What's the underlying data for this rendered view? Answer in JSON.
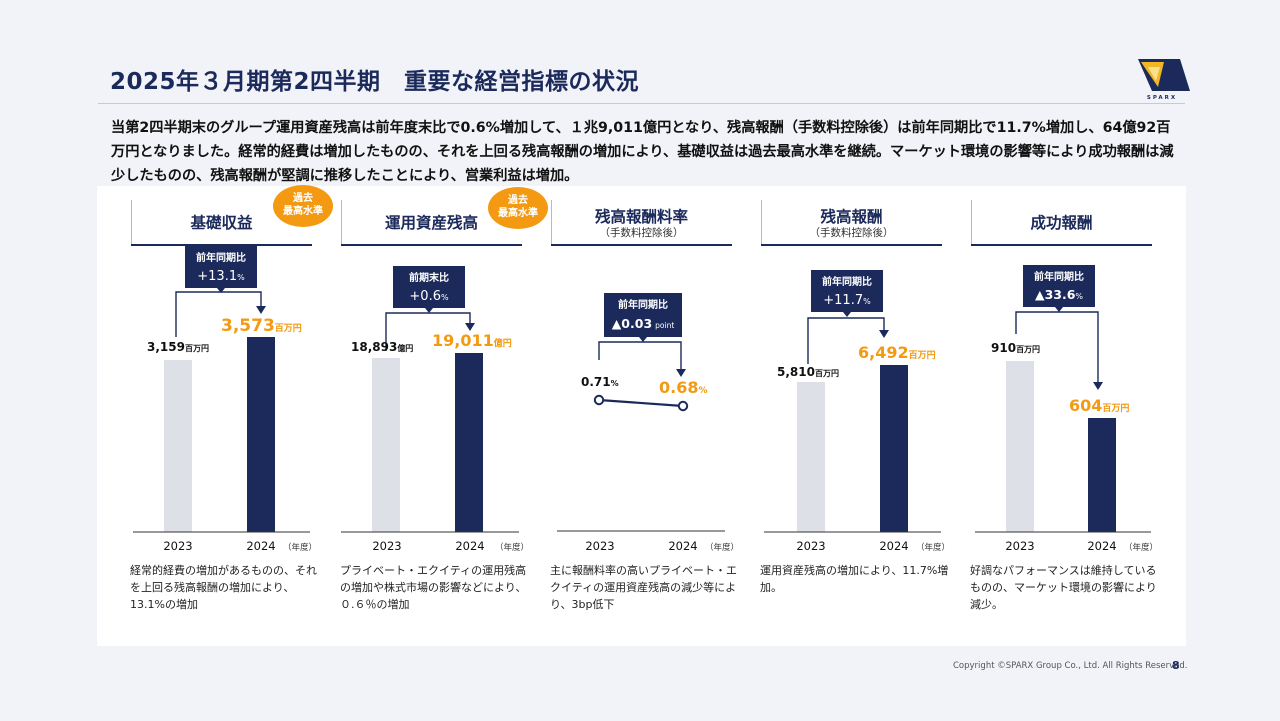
{
  "title": "2025年３月期第2四半期　重要な経営指標の状況",
  "summary": "当第2四半期末のグループ運用資産残高は前年度末比で0.6%増加して、１兆9,011億円となり、残高報酬（手数料控除後）は前年同期比で11.7%増加し、64億92百万円となりました。経常的経費は増加したものの、それを上回る残高報酬の増加により、基礎収益は過去最高水準を継続。マーケット環境の影響等により成功報酬は減少したものの、残高報酬が堅調に推移したことにより、営業利益は増加。",
  "logo": {
    "text": "SPARX"
  },
  "colors": {
    "prev_bar": "#dde0e6",
    "curr_bar": "#1b2a5b",
    "accent": "#f39a12",
    "navy": "#1b2a5b"
  },
  "panels": [
    {
      "title": "基礎収益",
      "subtitle": "",
      "badge": [
        "過去",
        "最高水準"
      ],
      "change_label": "前年同期比",
      "change_value": "+13.1",
      "change_unit": "%",
      "prev_label": "3,159",
      "prev_unit": "百万円",
      "curr_label": "3,573",
      "curr_unit": "百万円",
      "note": "経常的経費の増加があるものの、それを上回る残高報酬の増加により、13.1%の増加"
    },
    {
      "title": "運用資産残高",
      "subtitle": "",
      "badge": [
        "過去",
        "最高水準"
      ],
      "change_label": "前期末比",
      "change_value": "+0.6",
      "change_unit": "%",
      "prev_label": "18,893",
      "prev_unit": "億円",
      "curr_label": "19,011",
      "curr_unit": "億円",
      "note": "プライベート・エクイティの運用残高の増加や株式市場の影響などにより、０.６％の増加"
    },
    {
      "title": "残高報酬料率",
      "subtitle": "（手数料控除後）",
      "badge": null,
      "change_label": "前年同期比",
      "change_value": "▲0.03",
      "change_unit": "point",
      "prev_label": "0.71",
      "prev_unit": "%",
      "curr_label": "0.68",
      "curr_unit": "%",
      "note": "主に報酬料率の高いプライベート・エクイティの運用資産残高の減少等により、3bp低下"
    },
    {
      "title": "残高報酬",
      "subtitle": "（手数料控除後）",
      "badge": null,
      "change_label": "前年同期比",
      "change_value": "+11.7",
      "change_unit": "%",
      "prev_label": "5,810",
      "prev_unit": "百万円",
      "curr_label": "6,492",
      "curr_unit": "百万円",
      "note": "運用資産残高の増加により、11.7%増加。"
    },
    {
      "title": "成功報酬",
      "subtitle": "",
      "badge": null,
      "change_label": "前年同期比",
      "change_value": "▲33.6",
      "change_unit": "%",
      "prev_label": "910",
      "prev_unit": "百万円",
      "curr_label": "604",
      "curr_unit": "百万円",
      "note": "好調なパフォーマンスは維持しているものの、マーケット環境の影響により減少。"
    }
  ],
  "x_labels": [
    "2023",
    "2024"
  ],
  "fiscal_year_label": "（年度）",
  "chart_data": [
    {
      "type": "bar",
      "title": "基礎収益",
      "categories": [
        "2023",
        "2024"
      ],
      "values": [
        3159,
        3573
      ],
      "unit": "百万円"
    },
    {
      "type": "bar",
      "title": "運用資産残高",
      "categories": [
        "2023",
        "2024"
      ],
      "values": [
        18893,
        19011
      ],
      "unit": "億円"
    },
    {
      "type": "line",
      "title": "残高報酬料率",
      "categories": [
        "2023",
        "2024"
      ],
      "values": [
        0.71,
        0.68
      ],
      "unit": "%"
    },
    {
      "type": "bar",
      "title": "残高報酬",
      "categories": [
        "2023",
        "2024"
      ],
      "values": [
        5810,
        6492
      ],
      "unit": "百万円"
    },
    {
      "type": "bar",
      "title": "成功報酬",
      "categories": [
        "2023",
        "2024"
      ],
      "values": [
        910,
        604
      ],
      "unit": "百万円"
    }
  ],
  "footer": {
    "copyright": "Copyright ©SPARX Group Co., Ltd. All Rights Reserved.",
    "page": "8"
  }
}
